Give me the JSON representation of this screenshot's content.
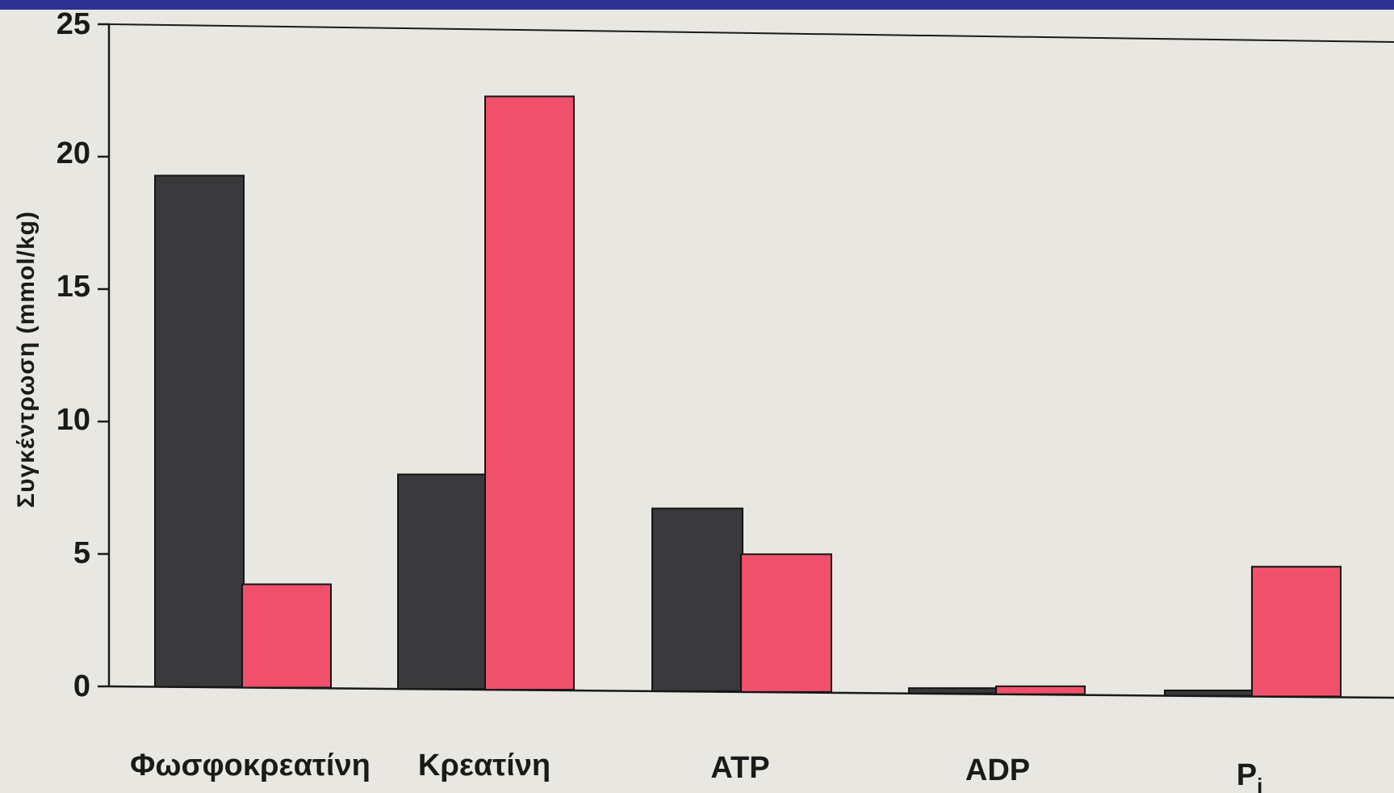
{
  "colors": {
    "band": "#2e3192",
    "background": "#e9e7e2",
    "series_before": "#3a3a3c",
    "series_after": "#f0506a",
    "axis": "#1a1a1a"
  },
  "chart_data": {
    "type": "bar",
    "ylabel": "Συγκέντρωση (mmol/kg)",
    "xlabel": "",
    "ylim": [
      0,
      25
    ],
    "yticks": [
      "0",
      "5",
      "10",
      "15",
      "20",
      "25"
    ],
    "categories": [
      "Φωσφοκρεατίνη",
      "Κρεατίνη",
      "ATP",
      "ADP",
      "P"
    ],
    "category_subscripts": [
      "",
      "",
      "",
      "",
      "i"
    ],
    "series": [
      {
        "values": [
          19.3,
          8.1,
          6.9,
          0.2,
          0.2
        ]
      },
      {
        "values": [
          3.9,
          22.4,
          5.2,
          0.3,
          4.9
        ]
      }
    ],
    "legend": "none",
    "grid": false
  }
}
